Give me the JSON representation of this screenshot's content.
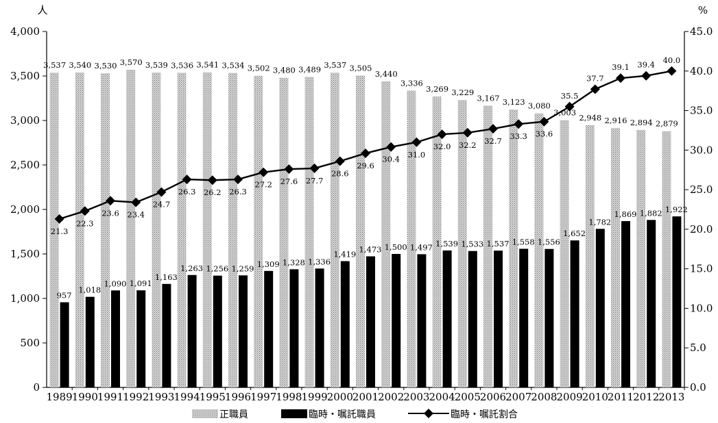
{
  "chart_data": {
    "type": "bar",
    "title": "",
    "xlabel": "",
    "ylabel_left_unit": "人",
    "ylabel_right_unit": "%",
    "ylim_left": [
      0,
      4000
    ],
    "ylim_right": [
      0,
      45
    ],
    "yticks_left": [
      "0",
      "500",
      "1,000",
      "1,500",
      "2,000",
      "2,500",
      "3,000",
      "3,500",
      "4,000"
    ],
    "yticks_right": [
      "0.0",
      "5.0",
      "10.0",
      "15.0",
      "20.0",
      "25.0",
      "30.0",
      "35.0",
      "40.0",
      "45.0"
    ],
    "categories": [
      "1989",
      "1990",
      "1991",
      "1992",
      "1993",
      "1994",
      "1995",
      "1996",
      "1997",
      "1998",
      "1999",
      "2000",
      "2001",
      "2002",
      "2003",
      "2004",
      "2005",
      "2006",
      "2007",
      "2008",
      "2009",
      "2010",
      "2011",
      "2012",
      "2013"
    ],
    "series": [
      {
        "name": "正職員",
        "kind": "bar",
        "axis": "left",
        "color": "#b8b8b8",
        "values": [
          3537,
          3540,
          3530,
          3570,
          3539,
          3536,
          3541,
          3534,
          3502,
          3480,
          3489,
          3537,
          3505,
          3440,
          3336,
          3269,
          3229,
          3167,
          3123,
          3080,
          3003,
          2948,
          2916,
          2894,
          2879
        ],
        "labels": [
          "3,537",
          "3,540",
          "3,530",
          "3,570",
          "3,539",
          "3,536",
          "3,541",
          "3,534",
          "3,502",
          "3,480",
          "3,489",
          "3,537",
          "3,505",
          "3,440",
          "3,336",
          "3,269",
          "3,229",
          "3,167",
          "3,123",
          "3,080",
          "3,003",
          "2,948",
          "2,916",
          "2,894",
          "2,879"
        ]
      },
      {
        "name": "臨時・嘱託職員",
        "kind": "bar",
        "axis": "left",
        "color": "#000000",
        "values": [
          957,
          1018,
          1090,
          1091,
          1163,
          1263,
          1256,
          1259,
          1309,
          1328,
          1336,
          1419,
          1473,
          1500,
          1497,
          1539,
          1533,
          1537,
          1558,
          1556,
          1652,
          1782,
          1869,
          1882,
          1922
        ],
        "labels": [
          "957",
          "1,018",
          "1,090",
          "1,091",
          "1,163",
          "1,263",
          "1,256",
          "1,259",
          "1,309",
          "1,328",
          "1,336",
          "1,419",
          "1,473",
          "1,500",
          "1,497",
          "1,539",
          "1,533",
          "1,537",
          "1,558",
          "1,556",
          "1,652",
          "1,782",
          "1,869",
          "1,882",
          "1,922"
        ]
      },
      {
        "name": "臨時・嘱託割合",
        "kind": "line",
        "axis": "right",
        "color": "#000000",
        "values": [
          21.3,
          22.3,
          23.6,
          23.4,
          24.7,
          26.3,
          26.2,
          26.3,
          27.2,
          27.6,
          27.7,
          28.6,
          29.6,
          30.4,
          31.0,
          32.0,
          32.2,
          32.7,
          33.3,
          33.6,
          35.5,
          37.7,
          39.1,
          39.4,
          40.0
        ],
        "labels": [
          "21.3",
          "22.3",
          "23.6",
          "23.4",
          "24.7",
          "26.3",
          "26.2",
          "26.3",
          "27.2",
          "27.6",
          "27.7",
          "28.6",
          "29.6",
          "30.4",
          "31.0",
          "32.0",
          "32.2",
          "32.7",
          "33.3",
          "33.6",
          "35.5",
          "37.7",
          "39.1",
          "39.4",
          "40.0"
        ]
      }
    ],
    "legend": "bottom-center",
    "grid": false
  }
}
